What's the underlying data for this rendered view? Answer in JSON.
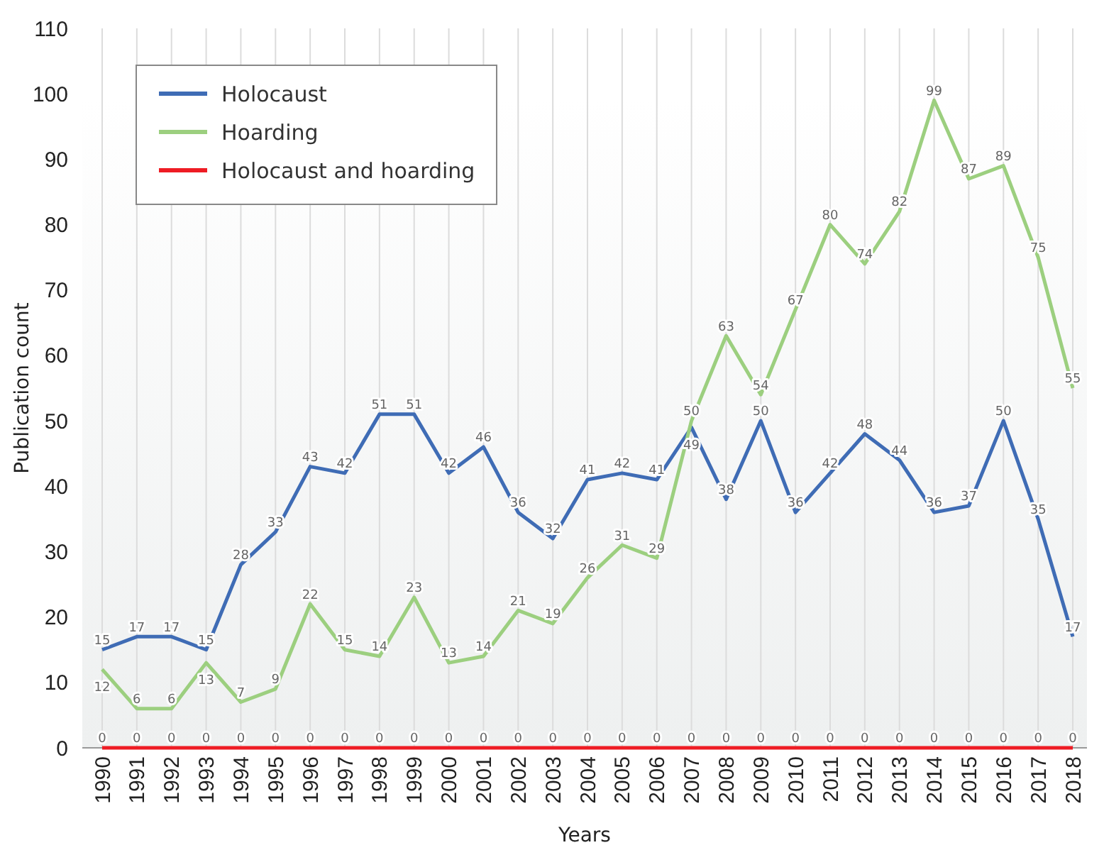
{
  "chart_data": {
    "type": "line",
    "xlabel": "Years",
    "ylabel": "Publication count",
    "categories": [
      "1990",
      "1991",
      "1992",
      "1993",
      "1994",
      "1995",
      "1996",
      "1997",
      "1998",
      "1999",
      "2000",
      "2001",
      "2002",
      "2003",
      "2004",
      "2005",
      "2006",
      "2007",
      "2008",
      "2009",
      "2010",
      "2011",
      "2012",
      "2013",
      "2014",
      "2015",
      "2016",
      "2017",
      "2018"
    ],
    "series": [
      {
        "name": "Holocaust",
        "color": "#3f6cb5",
        "values": [
          15,
          17,
          17,
          15,
          28,
          33,
          43,
          42,
          51,
          51,
          42,
          46,
          36,
          32,
          41,
          42,
          41,
          49,
          38,
          50,
          36,
          42,
          48,
          44,
          36,
          37,
          50,
          35,
          17
        ]
      },
      {
        "name": "Hoarding",
        "color": "#9ccf7f",
        "values": [
          12,
          6,
          6,
          13,
          7,
          9,
          22,
          15,
          14,
          23,
          13,
          14,
          21,
          19,
          26,
          31,
          29,
          50,
          63,
          54,
          67,
          80,
          74,
          82,
          99,
          87,
          89,
          75,
          55
        ]
      },
      {
        "name": "Holocaust and hoarding",
        "color": "#ee1c24",
        "values": [
          0,
          0,
          0,
          0,
          0,
          0,
          0,
          0,
          0,
          0,
          0,
          0,
          0,
          0,
          0,
          0,
          0,
          0,
          0,
          0,
          0,
          0,
          0,
          0,
          0,
          0,
          0,
          0,
          0
        ]
      }
    ],
    "ylim": [
      0,
      110
    ],
    "yticks": [
      0,
      10,
      20,
      30,
      40,
      50,
      60,
      70,
      80,
      90,
      100,
      110
    ],
    "grid": "x",
    "legend": "top left",
    "data_labels": true,
    "marker": "none",
    "line_style": "solid"
  }
}
